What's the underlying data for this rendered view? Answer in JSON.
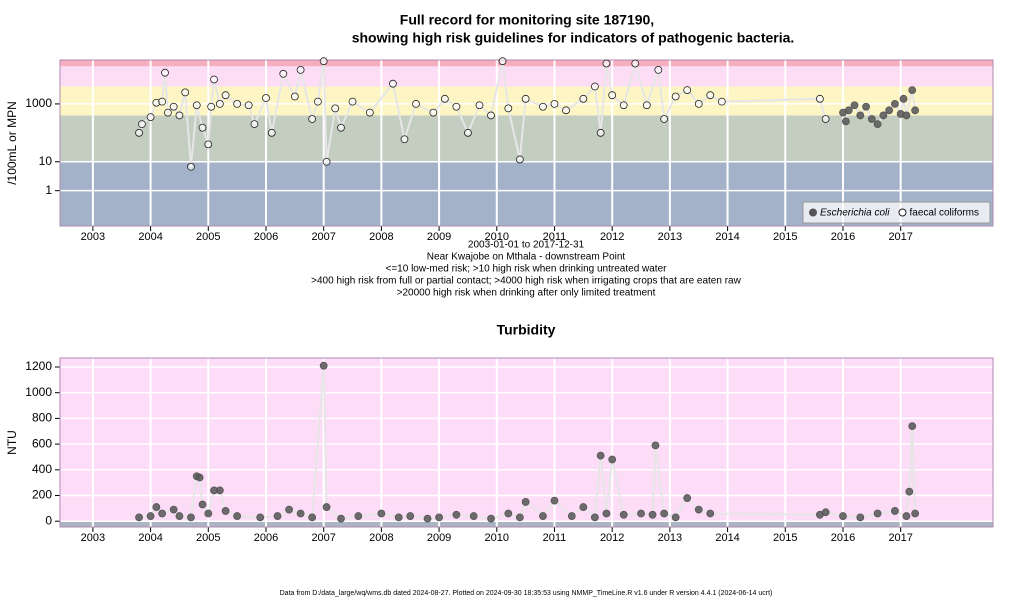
{
  "title_lines": [
    "Full record for monitoring site 187190,",
    "showing high risk guidelines for indicators of pathogenic bacteria."
  ],
  "caption": [
    "2003-01-01 to 2017-12-31",
    "Near Kwajobe on Mthala - downstream Point",
    "<=10 low-med risk; >10 high risk when drinking untreated water",
    ">400 high risk from full or partial contact; >4000 high risk when irrigating crops that are eaten raw",
    ">20000 high risk when drinking after only limited treatment"
  ],
  "footer": "Data from D:/data_large/wq/wms.db dated 2024-08-27. Plotted on 2024-09-30 18:35:53 using NMMP_TimeLine.R v1.6 under R version 4.4.1 (2024-06-14 ucrt)",
  "chart_data": [
    {
      "type": "scatter",
      "ylabel": "/100mL or MPN",
      "log": true,
      "legend": "bottom-right",
      "xlim": [
        2002.43,
        2018.6
      ],
      "xticks": [
        2003,
        2004,
        2005,
        2006,
        2007,
        2008,
        2009,
        2010,
        2011,
        2012,
        2013,
        2014,
        2015,
        2016,
        2017
      ],
      "ylim": [
        0.06,
        33000
      ],
      "yticks": [
        1,
        10,
        1000
      ],
      "bands": [
        {
          "from": 0.06,
          "to": 10,
          "color": "#a3b1c9"
        },
        {
          "from": 10,
          "to": 400,
          "color": "#c3cdc0"
        },
        {
          "from": 400,
          "to": 4000,
          "color": "#fdf6c4"
        },
        {
          "from": 4000,
          "to": 20000,
          "color": "#fddcf5"
        },
        {
          "from": 20000,
          "to": 33000,
          "color": "#f5aec0"
        }
      ],
      "series": [
        {
          "name": "Escherichia coli",
          "color": "#555555",
          "filled": true,
          "italic": true,
          "x": [
            2016.0,
            2016.05,
            2016.1,
            2016.2,
            2016.3,
            2016.4,
            2016.5,
            2016.6,
            2016.7,
            2016.8,
            2016.9,
            2017.0,
            2017.05,
            2017.1,
            2017.2,
            2017.25
          ],
          "values": [
            500,
            250,
            600,
            900,
            400,
            800,
            300,
            200,
            400,
            600,
            1000,
            450,
            1500,
            400,
            3000,
            600
          ]
        },
        {
          "name": "faecal coliforms",
          "color": "#222222",
          "filled": false,
          "italic": false,
          "x": [
            2003.8,
            2003.85,
            2004.0,
            2004.1,
            2004.2,
            2004.25,
            2004.3,
            2004.4,
            2004.5,
            2004.6,
            2004.7,
            2004.8,
            2004.9,
            2005.0,
            2005.05,
            2005.1,
            2005.2,
            2005.3,
            2005.5,
            2005.7,
            2005.8,
            2006.0,
            2006.1,
            2006.3,
            2006.5,
            2006.6,
            2006.8,
            2006.9,
            2007.0,
            2007.05,
            2007.2,
            2007.3,
            2007.5,
            2007.8,
            2008.2,
            2008.4,
            2008.6,
            2008.9,
            2009.1,
            2009.3,
            2009.5,
            2009.7,
            2009.9,
            2010.1,
            2010.2,
            2010.4,
            2010.5,
            2010.8,
            2011.0,
            2011.2,
            2011.5,
            2011.7,
            2011.8,
            2011.9,
            2012.0,
            2012.2,
            2012.4,
            2012.6,
            2012.8,
            2012.9,
            2013.1,
            2013.3,
            2013.5,
            2013.7,
            2013.9,
            2015.6,
            2015.7
          ],
          "values": [
            100,
            200,
            350,
            1100,
            1200,
            12000,
            500,
            800,
            400,
            2500,
            6.7,
            900,
            150,
            40,
            800,
            7000,
            1000,
            2000,
            1000,
            900,
            200,
            1600,
            100,
            11000,
            1800,
            15000,
            300,
            1200,
            30000,
            10,
            700,
            150,
            1200,
            500,
            5000,
            60,
            1000,
            500,
            1500,
            800,
            100,
            900,
            400,
            30000,
            700,
            12,
            1500,
            800,
            1000,
            600,
            1500,
            4000,
            100,
            25000,
            2000,
            900,
            25000,
            900,
            15000,
            300,
            1800,
            3000,
            1000,
            2000,
            1200,
            1500,
            300
          ]
        }
      ]
    },
    {
      "type": "scatter",
      "title": "Turbidity",
      "ylabel": "NTU",
      "log": false,
      "xlim": [
        2002.43,
        2018.6
      ],
      "xticks": [
        2003,
        2004,
        2005,
        2006,
        2007,
        2008,
        2009,
        2010,
        2011,
        2012,
        2013,
        2014,
        2015,
        2016,
        2017
      ],
      "ylim": [
        -45,
        1270
      ],
      "yticks": [
        0,
        200,
        400,
        600,
        800,
        1000,
        1200
      ],
      "bands": [
        {
          "from": -45,
          "to": 0,
          "color": "#aab4c2"
        },
        {
          "from": 0,
          "to": 1270,
          "color": "#fddcf8"
        }
      ],
      "series": [
        {
          "color": "#555555",
          "filled": true,
          "x": [
            2003.8,
            2004.0,
            2004.1,
            2004.2,
            2004.4,
            2004.5,
            2004.7,
            2004.8,
            2004.85,
            2004.9,
            2005.0,
            2005.1,
            2005.2,
            2005.3,
            2005.5,
            2005.9,
            2006.2,
            2006.4,
            2006.6,
            2006.8,
            2007.0,
            2007.05,
            2007.3,
            2007.6,
            2008.0,
            2008.3,
            2008.5,
            2008.8,
            2009.0,
            2009.3,
            2009.6,
            2009.9,
            2010.2,
            2010.4,
            2010.5,
            2010.8,
            2011.0,
            2011.3,
            2011.5,
            2011.7,
            2011.8,
            2011.9,
            2012.0,
            2012.2,
            2012.5,
            2012.7,
            2012.75,
            2012.9,
            2013.1,
            2013.3,
            2013.5,
            2013.7,
            2015.6,
            2015.7,
            2016.0,
            2016.3,
            2016.6,
            2016.9,
            2017.1,
            2017.15,
            2017.2,
            2017.25
          ],
          "values": [
            30,
            40,
            110,
            60,
            90,
            40,
            30,
            350,
            340,
            130,
            60,
            240,
            240,
            80,
            40,
            30,
            40,
            90,
            60,
            30,
            1210,
            110,
            20,
            40,
            60,
            30,
            40,
            20,
            30,
            50,
            40,
            20,
            60,
            30,
            150,
            40,
            160,
            40,
            110,
            30,
            510,
            60,
            480,
            50,
            60,
            50,
            590,
            60,
            30,
            180,
            90,
            60,
            50,
            70,
            40,
            30,
            60,
            80,
            40,
            230,
            740,
            60
          ]
        }
      ]
    }
  ]
}
